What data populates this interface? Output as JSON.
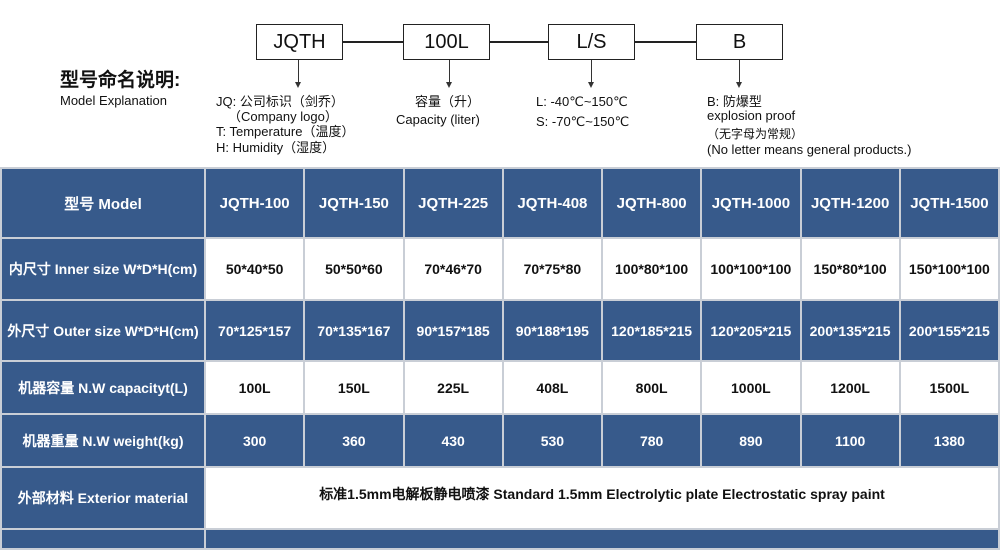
{
  "diagram": {
    "boxes": [
      "JQTH",
      "100L",
      "L/S",
      "B"
    ],
    "title_cn": "型号命名说明:",
    "title_en": "Model Explanation",
    "notes": {
      "jqth": [
        "JQ: 公司标识（剑乔）",
        "（Company logo）",
        "T: Temperature（温度）",
        "H: Humidity（湿度）"
      ],
      "capacity": [
        "容量（升）",
        "Capacity (liter)"
      ],
      "ls": [
        "L: -40℃~150℃",
        "S: -70℃~150℃"
      ],
      "b": [
        "B: 防爆型",
        "explosion proof",
        "（无字母为常规）",
        "(No letter means general products.)"
      ]
    }
  },
  "table": {
    "header": {
      "label": "型号 Model",
      "values": [
        "JQTH-100",
        "JQTH-150",
        "JQTH-225",
        "JQTH-408",
        "JQTH-800",
        "JQTH-1000",
        "JQTH-1200",
        "JQTH-1500"
      ]
    },
    "rows": [
      {
        "label": "内尺寸 Inner size W*D*H(cm)",
        "values": [
          "50*40*50",
          "50*50*60",
          "70*46*70",
          "70*75*80",
          "100*80*100",
          "100*100*100",
          "150*80*100",
          "150*100*100"
        ]
      },
      {
        "label": "外尺寸 Outer size W*D*H(cm)",
        "values": [
          "70*125*157",
          "70*135*167",
          "90*157*185",
          "90*188*195",
          "120*185*215",
          "120*205*215",
          "200*135*215",
          "200*155*215"
        ]
      },
      {
        "label": "机器容量 N.W capacityt(L)",
        "values": [
          "100L",
          "150L",
          "225L",
          "408L",
          "800L",
          "1000L",
          "1200L",
          "1500L"
        ]
      },
      {
        "label": "机器重量 N.W weight(kg)",
        "values": [
          "300",
          "360",
          "430",
          "530",
          "780",
          "890",
          "1100",
          "1380"
        ]
      }
    ],
    "exterior": {
      "label": "外部材料 Exterior material",
      "value": "标准1.5mm电解板静电喷漆  Standard 1.5mm Electrolytic plate Electrostatic spray paint"
    }
  },
  "colors": {
    "header_blue": "#375a8b",
    "grid": "#c9ced6"
  }
}
